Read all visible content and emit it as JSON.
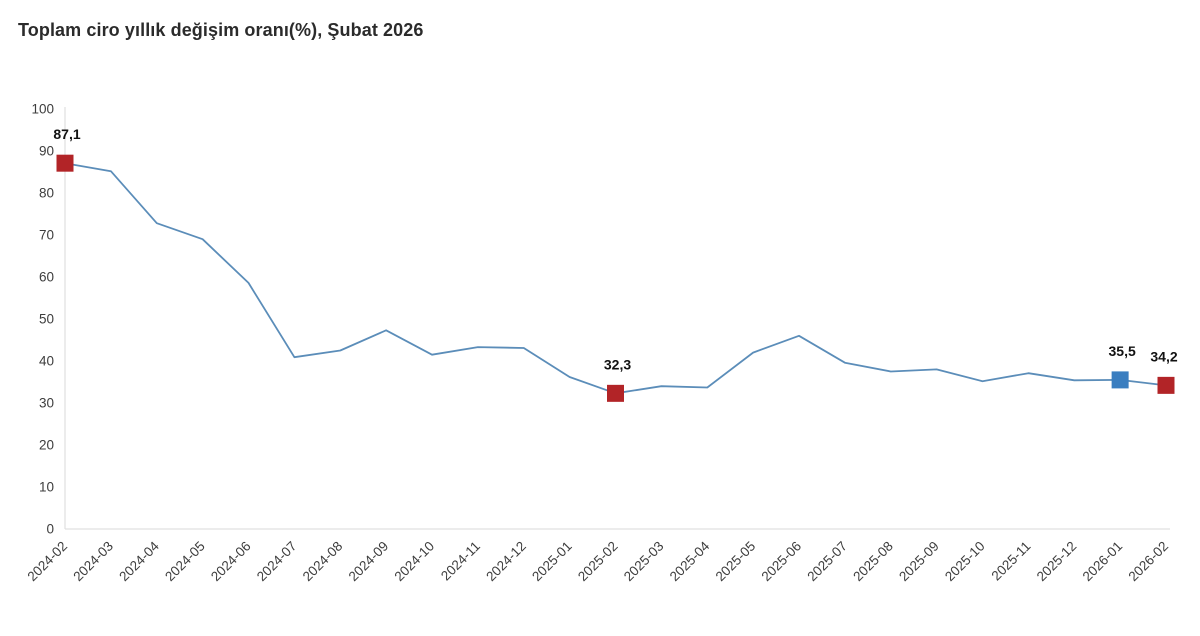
{
  "title": "Toplam ciro yıllık değişim oranı(%), Şubat 2026",
  "colors": {
    "line": "#5b8db9",
    "marker_red": "#b22427",
    "marker_blue": "#3a7ec0",
    "axis_line": "#e0e0e0",
    "tick_text": "#3d3d3d",
    "value_label_text": "#111111"
  },
  "chart_data": {
    "type": "line",
    "title": "Toplam ciro yıllık değişim oranı(%), Şubat 2026",
    "xlabel": "",
    "ylabel": "",
    "ylim": [
      0,
      100
    ],
    "ytick_step": 10,
    "grid": false,
    "legend_position": "none",
    "x": [
      "2024-02",
      "2024-03",
      "2024-04",
      "2024-05",
      "2024-06",
      "2024-07",
      "2024-08",
      "2024-09",
      "2024-10",
      "2024-11",
      "2024-12",
      "2025-01",
      "2025-02",
      "2025-03",
      "2025-04",
      "2025-05",
      "2025-06",
      "2025-07",
      "2025-08",
      "2025-09",
      "2025-10",
      "2025-11",
      "2025-12",
      "2026-01",
      "2026-02"
    ],
    "series": [
      {
        "name": "Toplam ciro yıllık değişim oranı (%)",
        "values": [
          87.1,
          85.2,
          72.8,
          69.0,
          58.6,
          40.9,
          42.5,
          47.3,
          41.5,
          43.3,
          43.1,
          36.2,
          32.3,
          34.0,
          33.7,
          42.0,
          46.0,
          39.6,
          37.5,
          38.0,
          35.2,
          37.1,
          35.4,
          35.5,
          34.2
        ]
      }
    ],
    "highlighted_points": [
      {
        "x": "2024-02",
        "value": 87.1,
        "label": "87,1",
        "color": "#b22427"
      },
      {
        "x": "2025-02",
        "value": 32.3,
        "label": "32,3",
        "color": "#b22427"
      },
      {
        "x": "2026-01",
        "value": 35.5,
        "label": "35,5",
        "color": "#3a7ec0"
      },
      {
        "x": "2026-02",
        "value": 34.2,
        "label": "34,2",
        "color": "#b22427"
      }
    ]
  }
}
